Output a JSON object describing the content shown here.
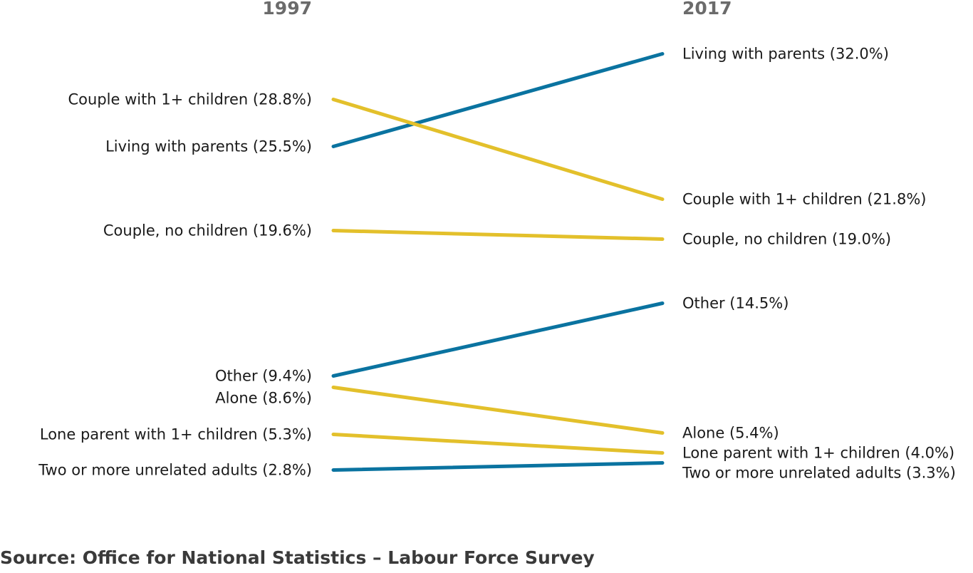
{
  "source": "Source: Office for National Statistics – Labour Force Survey",
  "colors": {
    "increase": "#0a73a0",
    "decrease": "#e3c02b"
  },
  "chart_data": {
    "type": "line",
    "subtype": "slope",
    "x": [
      "1997",
      "2017"
    ],
    "ylim": [
      0,
      35
    ],
    "grid": false,
    "series": [
      {
        "name": "Living with parents",
        "values": [
          25.5,
          32.0
        ],
        "labels": [
          "Living with parents (25.5%)",
          "Living with parents (32.0%)"
        ],
        "color": "#0a73a0"
      },
      {
        "name": "Couple with 1+ children",
        "values": [
          28.8,
          21.8
        ],
        "labels": [
          "Couple with 1+ children (28.8%)",
          "Couple with 1+ children (21.8%)"
        ],
        "color": "#e3c02b"
      },
      {
        "name": "Couple, no children",
        "values": [
          19.6,
          19.0
        ],
        "labels": [
          "Couple, no children (19.6%)",
          "Couple, no children (19.0%)"
        ],
        "color": "#e3c02b"
      },
      {
        "name": "Other",
        "values": [
          9.4,
          14.5
        ],
        "labels": [
          "Other (9.4%)",
          "Other (14.5%)"
        ],
        "color": "#0a73a0"
      },
      {
        "name": "Alone",
        "values": [
          8.6,
          5.4
        ],
        "labels": [
          "Alone (8.6%)",
          "Alone (5.4%)"
        ],
        "color": "#e3c02b"
      },
      {
        "name": "Lone parent with 1+ children",
        "values": [
          5.3,
          4.0
        ],
        "labels": [
          "Lone parent with 1+ children (5.3%)",
          "Lone parent with 1+ children (4.0%)"
        ],
        "color": "#e3c02b"
      },
      {
        "name": "Two or more unrelated adults",
        "values": [
          2.8,
          3.3
        ],
        "labels": [
          "Two or more unrelated adults (2.8%)",
          "Two or more unrelated adults (3.3%)"
        ],
        "color": "#0a73a0"
      }
    ]
  }
}
